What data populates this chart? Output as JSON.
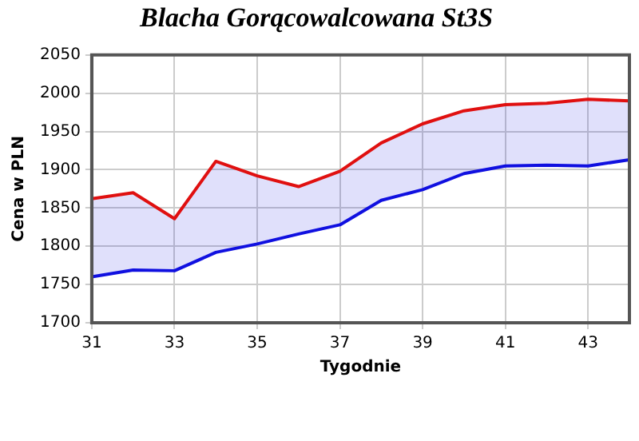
{
  "chart_data": {
    "type": "line",
    "title": "Blacha Gorącowalcowana St3S",
    "xlabel": "Tygodnie",
    "ylabel": "Cena w PLN",
    "x": [
      31,
      32,
      33,
      34,
      35,
      36,
      37,
      38,
      39,
      40,
      41,
      42,
      43,
      44
    ],
    "series": [
      {
        "color": "#e01010",
        "values": [
          1862,
          1870,
          1836,
          1911,
          1892,
          1878,
          1898,
          1935,
          1960,
          1977,
          1985,
          1987,
          1992,
          1990
        ]
      },
      {
        "color": "#1010e0",
        "values": [
          1760,
          1769,
          1768,
          1792,
          1803,
          1816,
          1828,
          1860,
          1874,
          1895,
          1905,
          1906,
          1905,
          1913
        ],
        "lower": [
          1760,
          1769,
          1768,
          1792,
          1803,
          1816,
          1828,
          1860,
          1874,
          1895,
          1905,
          1906,
          1905,
          1913
        ],
        "upper": [
          1862,
          1870,
          1836,
          1911,
          1892,
          1878,
          1898,
          1935,
          1960,
          1977,
          1985,
          1987,
          1992,
          1990
        ]
      }
    ],
    "xlim": [
      31,
      44
    ],
    "xticks": [
      31,
      33,
      35,
      37,
      39,
      41,
      43
    ],
    "ylim": [
      1700,
      2050
    ],
    "yticks": [
      1700,
      1750,
      1800,
      1850,
      1900,
      1950,
      2000,
      2050
    ],
    "grid": true,
    "legend": false,
    "marker": "none",
    "line_style": "solid"
  }
}
